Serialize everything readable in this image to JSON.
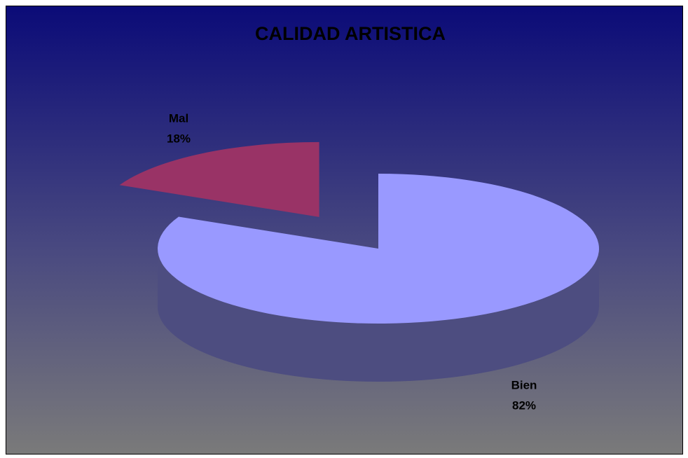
{
  "chart_data": {
    "type": "pie",
    "title": "CALIDAD ARTISTICA",
    "categories": [
      "Bien",
      "Mal"
    ],
    "values": [
      82,
      18
    ],
    "value_labels": [
      "82%",
      "18%"
    ],
    "colors": [
      "#9999ff",
      "#993366"
    ]
  }
}
